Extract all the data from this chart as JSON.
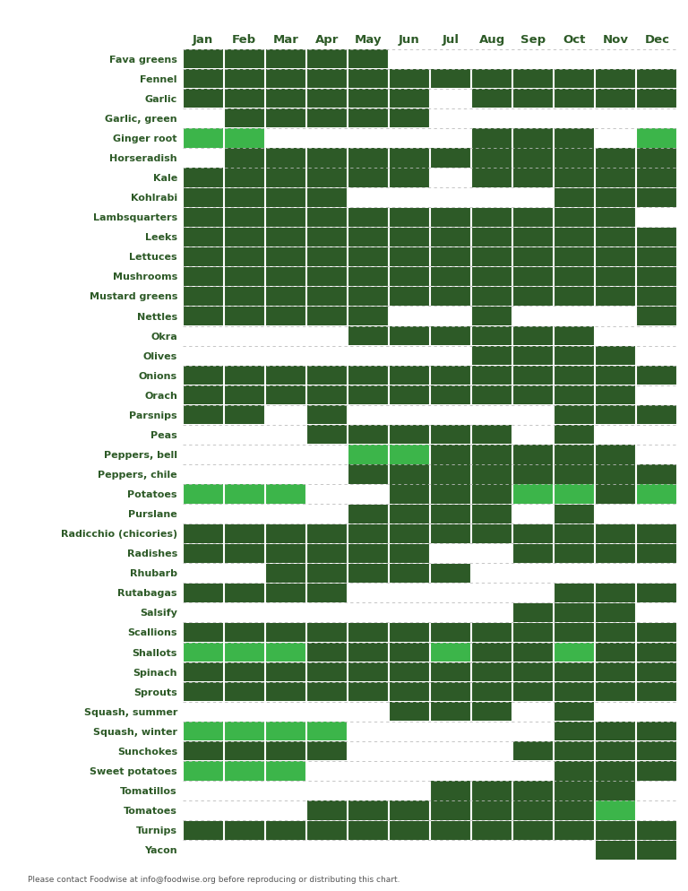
{
  "months": [
    "Jan",
    "Feb",
    "Mar",
    "Apr",
    "May",
    "Jun",
    "Jul",
    "Aug",
    "Sep",
    "Oct",
    "Nov",
    "Dec"
  ],
  "footer": "Please contact Foodwise at info@foodwise.org before reproducing or distributing this chart.",
  "dark_green": "#2d5a27",
  "light_green": "#3cb54a",
  "background": "#ffffff",
  "text_color": "#2d5a27",
  "vegetables": [
    "Fava greens",
    "Fennel",
    "Garlic",
    "Garlic, green",
    "Ginger root",
    "Horseradish",
    "Kale",
    "Kohlrabi",
    "Lambsquarters",
    "Leeks",
    "Lettuces",
    "Mushrooms",
    "Mustard greens",
    "Nettles",
    "Okra",
    "Olives",
    "Onions",
    "Orach",
    "Parsnips",
    "Peas",
    "Peppers, bell",
    "Peppers, chile",
    "Potatoes",
    "Purslane",
    "Radicchio (chicories)",
    "Radishes",
    "Rhubarb",
    "Rutabagas",
    "Salsify",
    "Scallions",
    "Shallots",
    "Spinach",
    "Sprouts",
    "Squash, summer",
    "Squash, winter",
    "Sunchokes",
    "Sweet potatoes",
    "Tomatillos",
    "Tomatoes",
    "Turnips",
    "Yacon"
  ],
  "season_data": {
    "Fava greens": [
      1,
      1,
      1,
      1,
      1,
      0,
      0,
      0,
      0,
      0,
      0,
      0
    ],
    "Fennel": [
      1,
      1,
      1,
      1,
      1,
      1,
      1,
      1,
      1,
      1,
      1,
      1
    ],
    "Garlic": [
      1,
      1,
      1,
      1,
      1,
      1,
      0,
      1,
      1,
      1,
      1,
      1
    ],
    "Garlic, green": [
      0,
      1,
      1,
      1,
      1,
      1,
      0,
      0,
      0,
      0,
      0,
      0
    ],
    "Ginger root": [
      2,
      2,
      0,
      0,
      0,
      0,
      0,
      1,
      1,
      1,
      0,
      2
    ],
    "Horseradish": [
      0,
      1,
      1,
      1,
      1,
      1,
      1,
      1,
      1,
      1,
      1,
      1
    ],
    "Kale": [
      1,
      1,
      1,
      1,
      1,
      1,
      0,
      1,
      1,
      1,
      1,
      1
    ],
    "Kohlrabi": [
      1,
      1,
      1,
      1,
      0,
      0,
      0,
      0,
      0,
      1,
      1,
      1
    ],
    "Lambsquarters": [
      1,
      1,
      1,
      1,
      1,
      1,
      1,
      1,
      1,
      1,
      1,
      0
    ],
    "Leeks": [
      1,
      1,
      1,
      1,
      1,
      1,
      1,
      1,
      1,
      1,
      1,
      1
    ],
    "Lettuces": [
      1,
      1,
      1,
      1,
      1,
      1,
      1,
      1,
      1,
      1,
      1,
      1
    ],
    "Mushrooms": [
      1,
      1,
      1,
      1,
      1,
      1,
      1,
      1,
      1,
      1,
      1,
      1
    ],
    "Mustard greens": [
      1,
      1,
      1,
      1,
      1,
      1,
      1,
      1,
      1,
      1,
      1,
      1
    ],
    "Nettles": [
      1,
      1,
      1,
      1,
      1,
      0,
      0,
      1,
      0,
      0,
      0,
      1
    ],
    "Okra": [
      0,
      0,
      0,
      0,
      1,
      1,
      1,
      1,
      1,
      1,
      0,
      0
    ],
    "Olives": [
      0,
      0,
      0,
      0,
      0,
      0,
      0,
      1,
      1,
      1,
      1,
      0
    ],
    "Onions": [
      1,
      1,
      1,
      1,
      1,
      1,
      1,
      1,
      1,
      1,
      1,
      1
    ],
    "Orach": [
      1,
      1,
      1,
      1,
      1,
      1,
      1,
      1,
      1,
      1,
      1,
      0
    ],
    "Parsnips": [
      1,
      1,
      0,
      1,
      0,
      0,
      0,
      0,
      0,
      1,
      1,
      1
    ],
    "Peas": [
      0,
      0,
      0,
      1,
      1,
      1,
      1,
      1,
      0,
      1,
      0,
      0
    ],
    "Peppers, bell": [
      0,
      0,
      0,
      0,
      2,
      2,
      1,
      1,
      1,
      1,
      1,
      0
    ],
    "Peppers, chile": [
      0,
      0,
      0,
      0,
      1,
      1,
      1,
      1,
      1,
      1,
      1,
      1
    ],
    "Potatoes": [
      2,
      2,
      2,
      0,
      0,
      1,
      1,
      1,
      2,
      2,
      1,
      2
    ],
    "Purslane": [
      0,
      0,
      0,
      0,
      1,
      1,
      1,
      1,
      0,
      1,
      0,
      0
    ],
    "Radicchio (chicories)": [
      1,
      1,
      1,
      1,
      1,
      1,
      1,
      1,
      1,
      1,
      1,
      1
    ],
    "Radishes": [
      1,
      1,
      1,
      1,
      1,
      1,
      0,
      0,
      1,
      1,
      1,
      1
    ],
    "Rhubarb": [
      0,
      0,
      1,
      1,
      1,
      1,
      1,
      0,
      0,
      0,
      0,
      0
    ],
    "Rutabagas": [
      1,
      1,
      1,
      1,
      0,
      0,
      0,
      0,
      0,
      1,
      1,
      1
    ],
    "Salsify": [
      0,
      0,
      0,
      0,
      0,
      0,
      0,
      0,
      1,
      1,
      1,
      0
    ],
    "Scallions": [
      1,
      1,
      1,
      1,
      1,
      1,
      1,
      1,
      1,
      1,
      1,
      1
    ],
    "Shallots": [
      2,
      2,
      2,
      1,
      1,
      1,
      2,
      1,
      1,
      2,
      1,
      1
    ],
    "Spinach": [
      1,
      1,
      1,
      1,
      1,
      1,
      1,
      1,
      1,
      1,
      1,
      1
    ],
    "Sprouts": [
      1,
      1,
      1,
      1,
      1,
      1,
      1,
      1,
      1,
      1,
      1,
      1
    ],
    "Squash, summer": [
      0,
      0,
      0,
      0,
      0,
      1,
      1,
      1,
      0,
      1,
      0,
      0
    ],
    "Squash, winter": [
      2,
      2,
      2,
      2,
      0,
      0,
      0,
      0,
      0,
      1,
      1,
      1
    ],
    "Sunchokes": [
      1,
      1,
      1,
      1,
      0,
      0,
      0,
      0,
      1,
      1,
      1,
      1
    ],
    "Sweet potatoes": [
      2,
      2,
      2,
      0,
      0,
      0,
      0,
      0,
      0,
      1,
      1,
      1
    ],
    "Tomatillos": [
      0,
      0,
      0,
      0,
      0,
      0,
      1,
      1,
      1,
      1,
      1,
      0
    ],
    "Tomatoes": [
      0,
      0,
      0,
      1,
      1,
      1,
      1,
      1,
      1,
      1,
      2,
      0
    ],
    "Turnips": [
      1,
      1,
      1,
      1,
      1,
      1,
      1,
      1,
      1,
      1,
      1,
      1
    ],
    "Yacon": [
      0,
      0,
      0,
      0,
      0,
      0,
      0,
      0,
      0,
      0,
      1,
      1
    ]
  }
}
